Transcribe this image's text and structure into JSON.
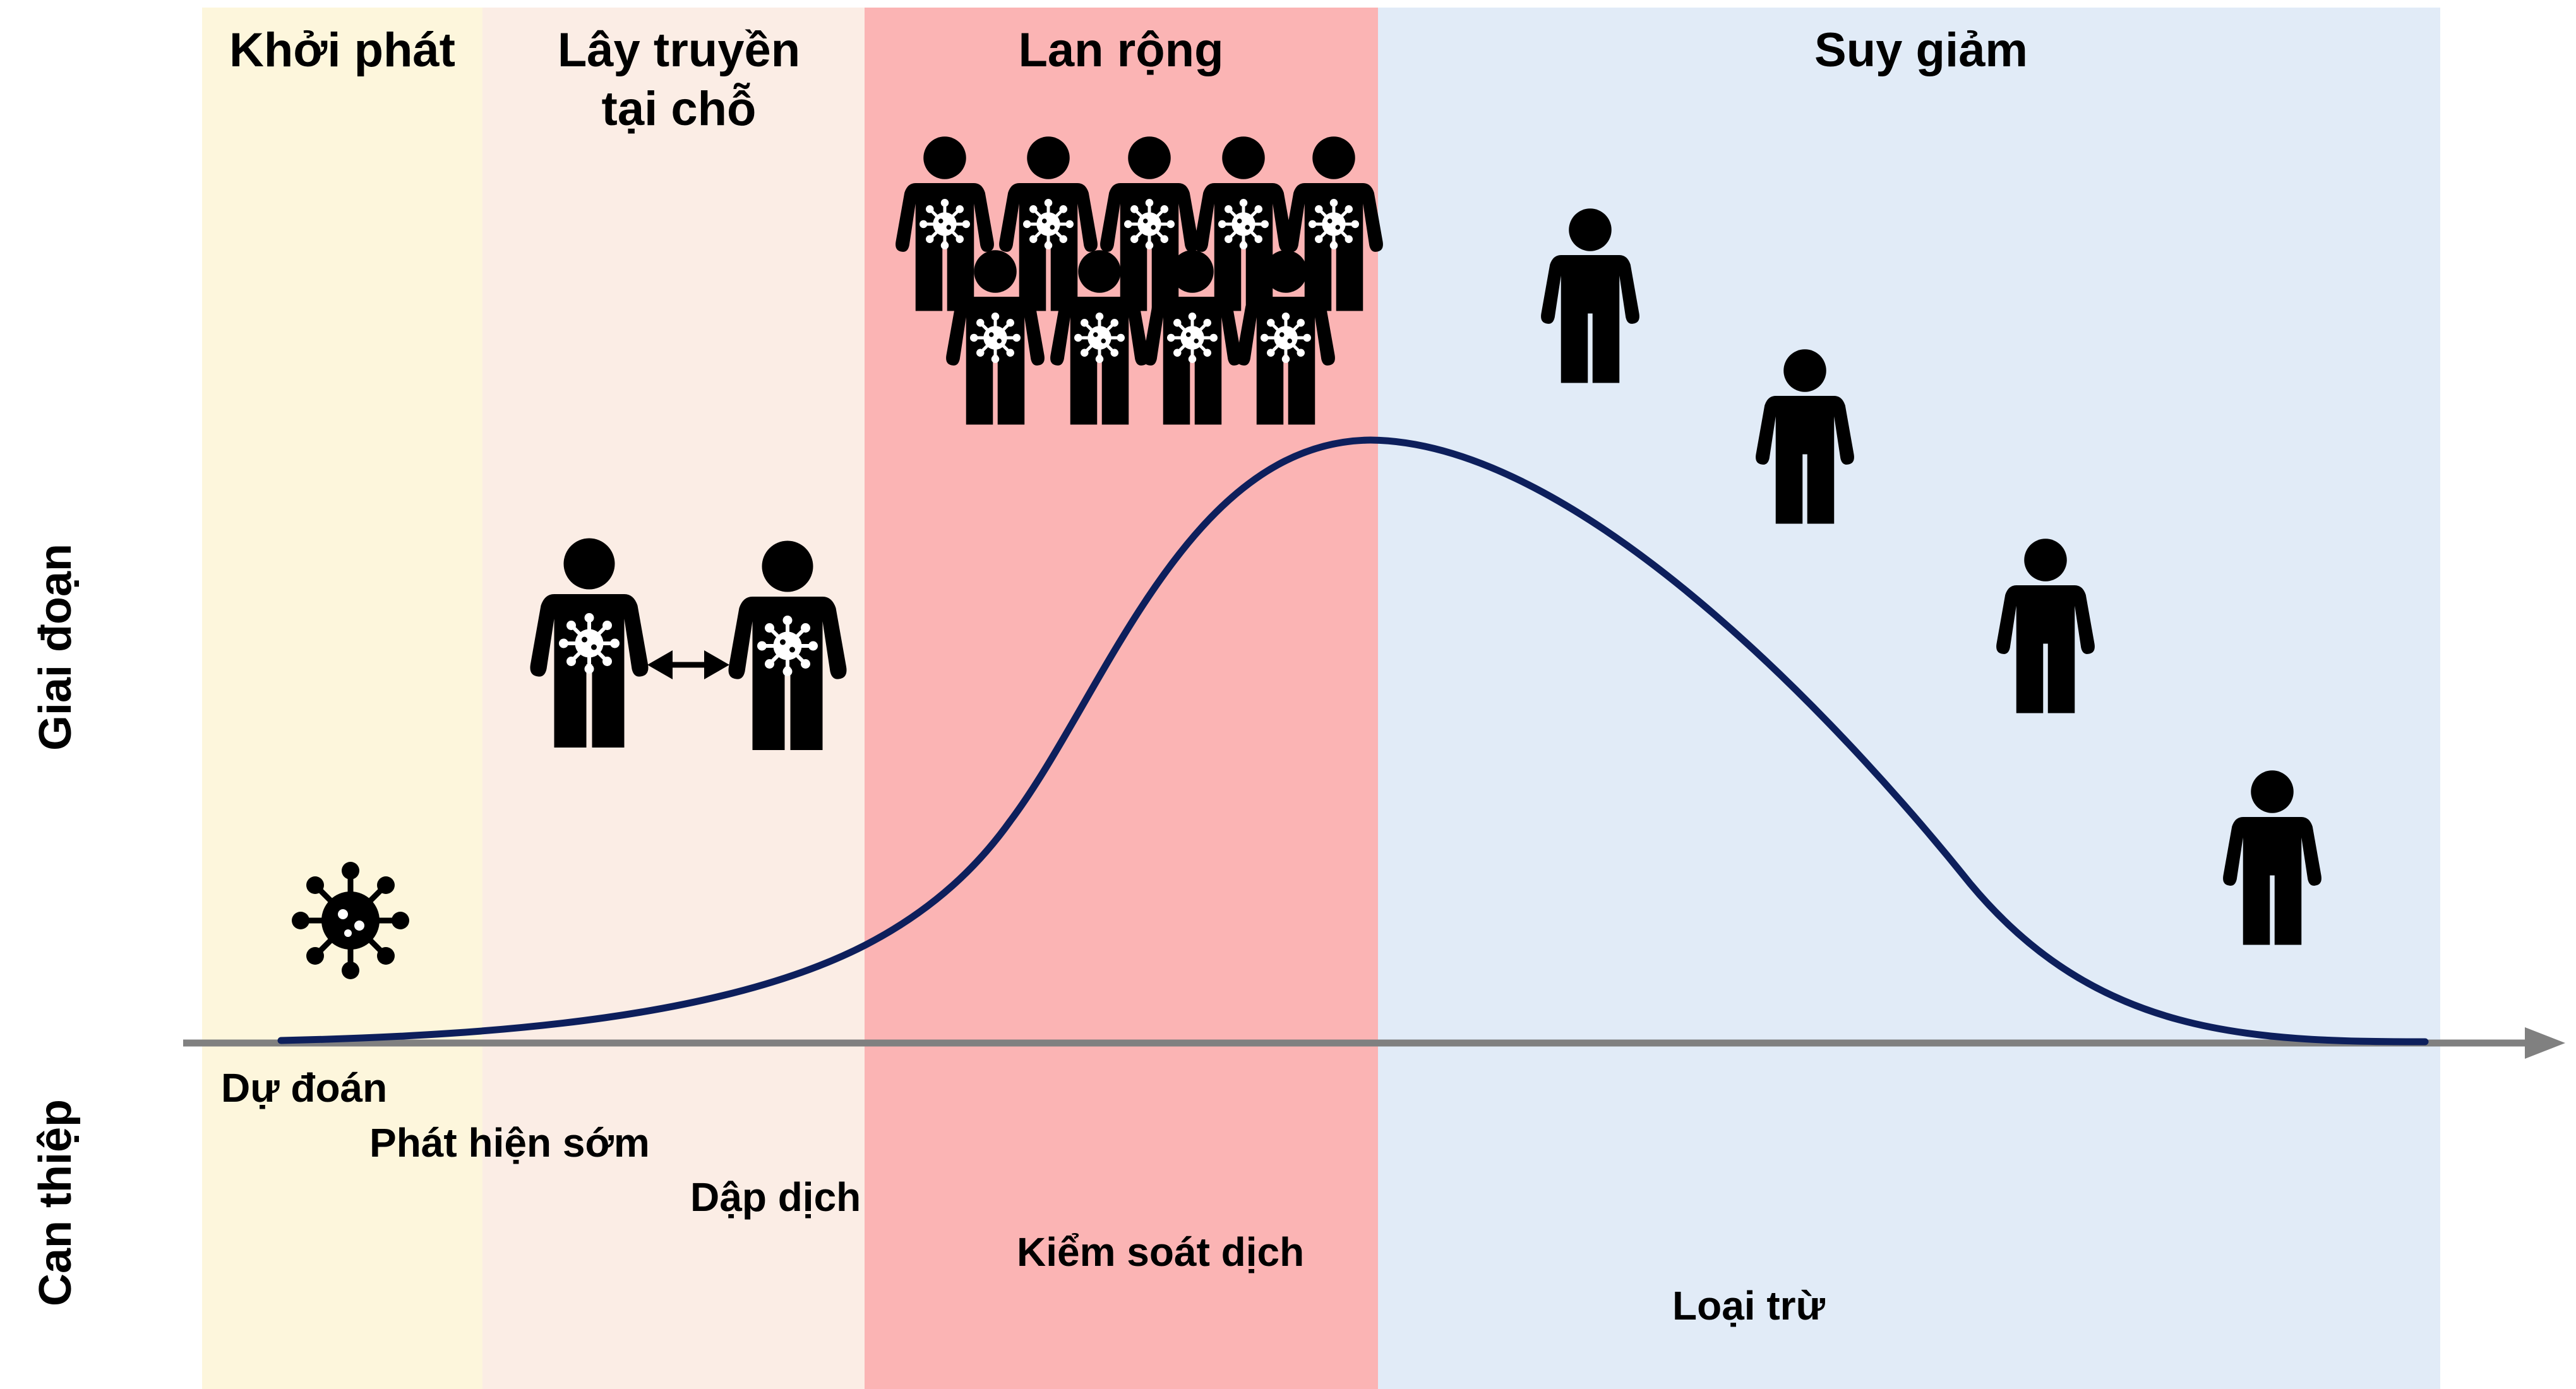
{
  "axes": {
    "upper_label": "Giai đoạn",
    "lower_label": "Can thiệp"
  },
  "phases": [
    {
      "id": "khoi-phat",
      "title_lines": [
        "Khởi phát"
      ],
      "color": "#FDF6DC"
    },
    {
      "id": "lay-truyen",
      "title_lines": [
        "Lây truyền",
        "tại chỗ"
      ],
      "color": "#FBEDE5"
    },
    {
      "id": "lan-rong",
      "title_lines": [
        "Lan rộng"
      ],
      "color": "#FBB4B4"
    },
    {
      "id": "suy-giam",
      "title_lines": [
        "Suy giảm"
      ],
      "color": "#E1EBF7"
    }
  ],
  "interventions": [
    "Dự đoán",
    "Phát hiện sớm",
    "Dập dịch",
    "Kiểm soát dịch",
    "Loại trừ"
  ],
  "icons": {
    "onset": "virus-icon",
    "local": [
      "infected-person-icon",
      "double-arrow-icon",
      "infected-person-icon"
    ],
    "spread": "infected-crowd-icon",
    "decline": "recovered-person-icon"
  },
  "colors": {
    "curve": "#0D1F5C",
    "axis": "#808080",
    "icon": "#000000"
  }
}
